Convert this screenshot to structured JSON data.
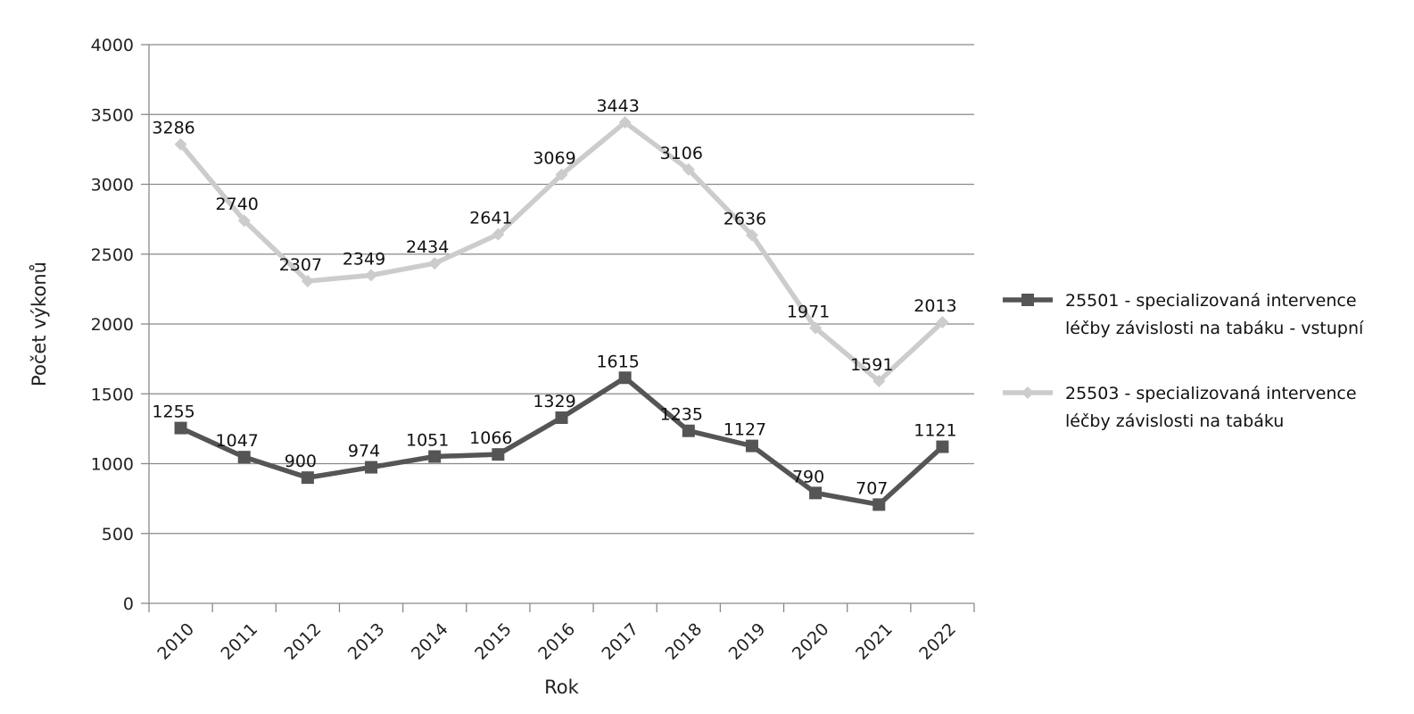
{
  "chart_data": {
    "type": "line",
    "categories": [
      "2010",
      "2011",
      "2012",
      "2013",
      "2014",
      "2015",
      "2016",
      "2017",
      "2018",
      "2019",
      "2020",
      "2021",
      "2022"
    ],
    "series": [
      {
        "name": "25501 - specializovaná intervence léčby závislosti na tabáku - vstupní",
        "legend_lines": [
          "25501 - specializovaná intervence",
          "léčby závislosti na tabáku - vstupní"
        ],
        "values": [
          1255,
          1047,
          900,
          974,
          1051,
          1066,
          1329,
          1615,
          1235,
          1127,
          790,
          707,
          1121
        ],
        "color": "#555555",
        "marker": "square"
      },
      {
        "name": "25503 - specializovaná intervence léčby závislosti na tabáku",
        "legend_lines": [
          "25503 - specializovaná intervence",
          "léčby závislosti na tabáku"
        ],
        "values": [
          3286,
          2740,
          2307,
          2349,
          2434,
          2641,
          3069,
          3443,
          3106,
          2636,
          1971,
          1591,
          2013
        ],
        "color": "#cccccc",
        "marker": "diamond"
      }
    ],
    "xlabel": "Rok",
    "ylabel": "Počet výkonů",
    "ylim": [
      0,
      4000
    ],
    "yticks": [
      "0",
      "500",
      "1000",
      "1500",
      "2000",
      "2500",
      "3000",
      "3500",
      "4000"
    ],
    "grid": true,
    "legend_position": "right"
  }
}
